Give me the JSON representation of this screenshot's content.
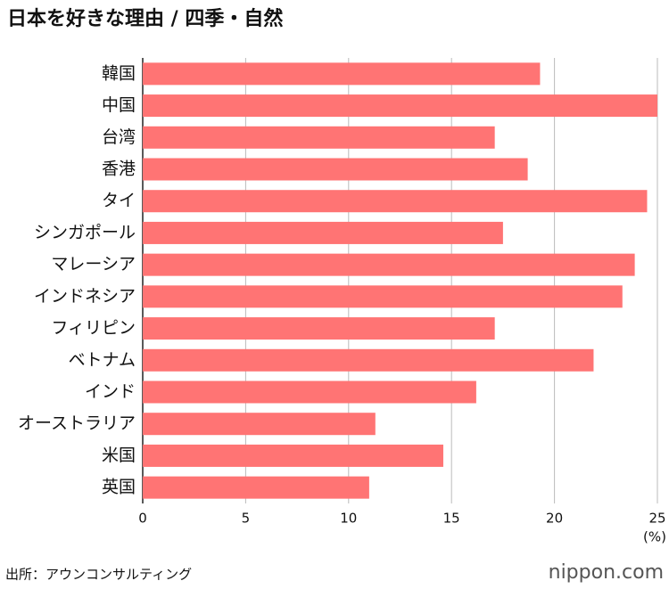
{
  "chart_data": {
    "type": "barh",
    "title": "日本を好きな理由 / 四季・自然",
    "categories": [
      "韓国",
      "中国",
      "台湾",
      "香港",
      "タイ",
      "シンガポール",
      "マレーシア",
      "インドネシア",
      "フィリピン",
      "ベトナム",
      "インド",
      "オーストラリア",
      "米国",
      "英国"
    ],
    "values": [
      19.3,
      25.0,
      17.1,
      18.7,
      24.5,
      17.5,
      23.9,
      23.3,
      17.1,
      21.9,
      16.2,
      11.3,
      14.6,
      11.0
    ],
    "color": "#ff7474",
    "xlim": [
      0,
      25
    ],
    "xticks": [
      0,
      5,
      10,
      15,
      20,
      25
    ],
    "x_label": "(%)",
    "grid": true,
    "source": "出所：アウンコンサルティング"
  },
  "logo": "nippon.com"
}
